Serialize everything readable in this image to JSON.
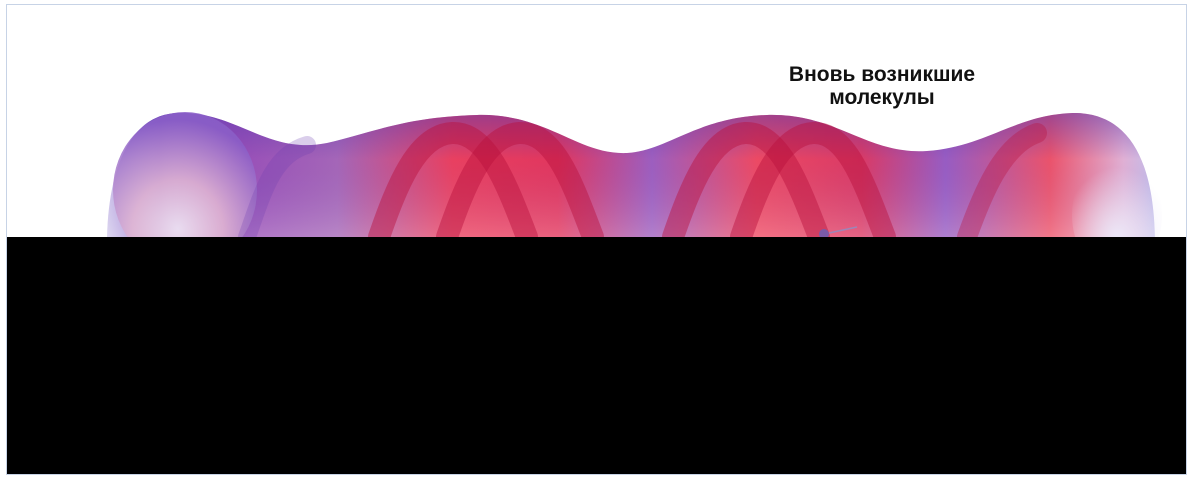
{
  "caption": {
    "line1": "Вновь возникшие",
    "line2": "молекулы"
  },
  "colors": {
    "tube_edge": "#7b55c4",
    "tube_red": "#f0344f",
    "strand": "#c01040",
    "frame_border": "#c7d3e6",
    "redaction": "#000000"
  }
}
